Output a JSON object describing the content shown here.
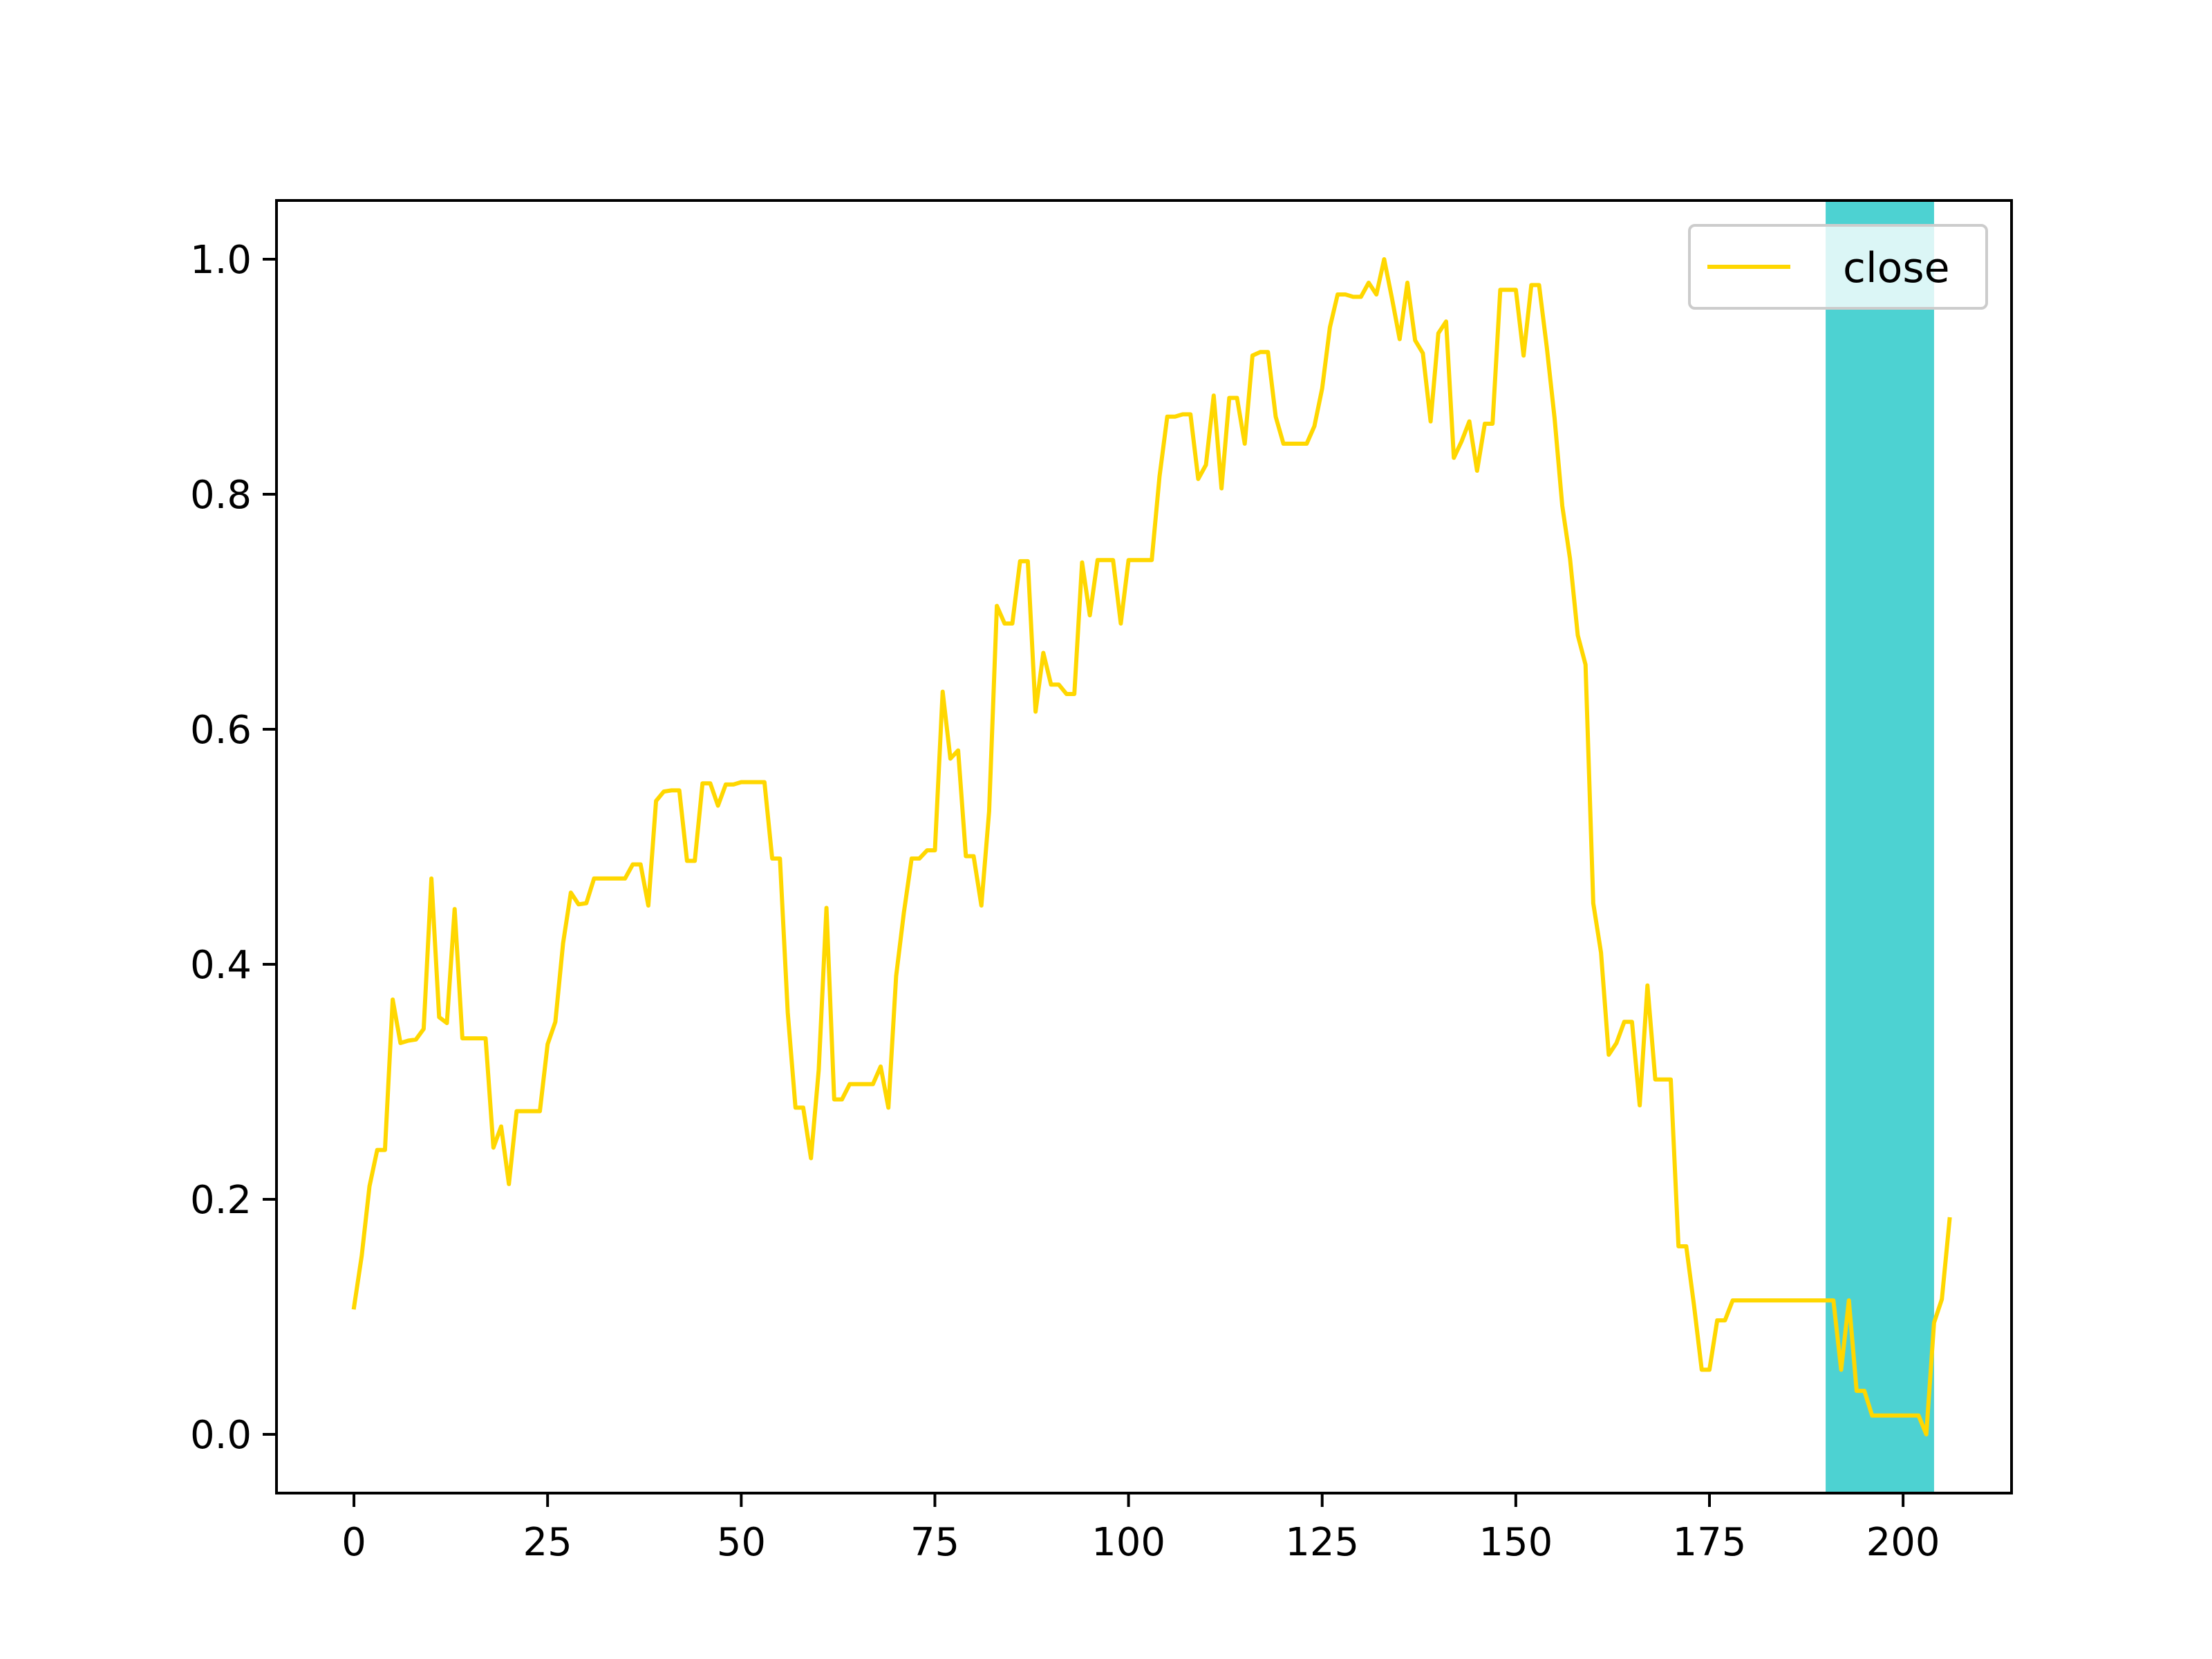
{
  "chart_data": {
    "type": "line",
    "title": "",
    "xlabel": "",
    "ylabel": "",
    "xlim": [
      -10,
      214
    ],
    "ylim": [
      -0.05,
      1.05
    ],
    "grid": false,
    "legend": {
      "placement": "top-right",
      "entries": [
        "close"
      ]
    },
    "x_ticks": [
      0,
      25,
      50,
      75,
      100,
      125,
      150,
      175,
      200
    ],
    "x_tick_labels": [
      "0",
      "25",
      "50",
      "75",
      "100",
      "125",
      "150",
      "175",
      "200"
    ],
    "y_ticks": [
      0.0,
      0.2,
      0.4,
      0.6,
      0.8,
      1.0
    ],
    "y_tick_labels": [
      "0.0",
      "0.2",
      "0.4",
      "0.6",
      "0.8",
      "1.0"
    ],
    "highlight_band": {
      "x_start": 190,
      "x_end": 204,
      "color": "#4dd2d2"
    },
    "series": [
      {
        "name": "close",
        "color": "#ffd700",
        "values": [
          0.108,
          0.152,
          0.211,
          0.242,
          0.242,
          0.37,
          0.333,
          0.335,
          0.336,
          0.345,
          0.473,
          0.355,
          0.35,
          0.447,
          0.337,
          0.337,
          0.337,
          0.337,
          0.244,
          0.262,
          0.213,
          0.275,
          0.275,
          0.275,
          0.275,
          0.332,
          0.351,
          0.418,
          0.461,
          0.451,
          0.452,
          0.473,
          0.473,
          0.473,
          0.473,
          0.473,
          0.485,
          0.485,
          0.45,
          0.539,
          0.547,
          0.548,
          0.548,
          0.488,
          0.488,
          0.554,
          0.554,
          0.535,
          0.553,
          0.553,
          0.555,
          0.555,
          0.555,
          0.555,
          0.49,
          0.49,
          0.359,
          0.278,
          0.278,
          0.235,
          0.31,
          0.448,
          0.285,
          0.285,
          0.298,
          0.298,
          0.298,
          0.298,
          0.313,
          0.278,
          0.39,
          0.444,
          0.49,
          0.49,
          0.497,
          0.497,
          0.632,
          0.575,
          0.582,
          0.492,
          0.492,
          0.45,
          0.53,
          0.705,
          0.69,
          0.69,
          0.743,
          0.743,
          0.615,
          0.665,
          0.638,
          0.638,
          0.63,
          0.63,
          0.742,
          0.697,
          0.744,
          0.744,
          0.744,
          0.69,
          0.744,
          0.744,
          0.744,
          0.744,
          0.815,
          0.866,
          0.866,
          0.868,
          0.868,
          0.813,
          0.825,
          0.884,
          0.805,
          0.882,
          0.882,
          0.843,
          0.918,
          0.921,
          0.921,
          0.866,
          0.843,
          0.843,
          0.843,
          0.843,
          0.858,
          0.89,
          0.942,
          0.97,
          0.97,
          0.968,
          0.968,
          0.98,
          0.97,
          1.0,
          0.967,
          0.932,
          0.98,
          0.931,
          0.92,
          0.862,
          0.937,
          0.947,
          0.831,
          0.845,
          0.862,
          0.82,
          0.86,
          0.86,
          0.974,
          0.974,
          0.974,
          0.918,
          0.978,
          0.978,
          0.925,
          0.865,
          0.79,
          0.745,
          0.68,
          0.655,
          0.452,
          0.41,
          0.323,
          0.333,
          0.351,
          0.351,
          0.28,
          0.382,
          0.302,
          0.302,
          0.302,
          0.16,
          0.16,
          0.11,
          0.055,
          0.055,
          0.097,
          0.097,
          0.114,
          0.114,
          0.114,
          0.114,
          0.114,
          0.114,
          0.114,
          0.114,
          0.114,
          0.114,
          0.114,
          0.114,
          0.114,
          0.114,
          0.055,
          0.114,
          0.037,
          0.037,
          0.016,
          0.016,
          0.016,
          0.016,
          0.016,
          0.016,
          0.016,
          0.0,
          0.095,
          0.115,
          0.183
        ]
      }
    ]
  }
}
